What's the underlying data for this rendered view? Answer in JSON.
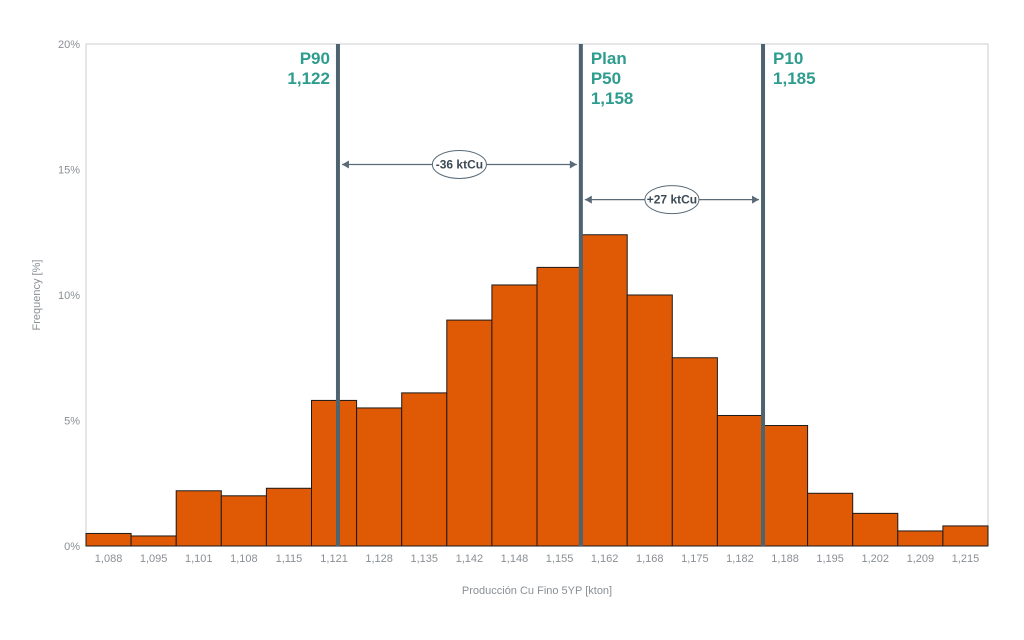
{
  "chart_data": {
    "type": "bar",
    "xlabel": "Producción Cu Fino 5YP [kton]",
    "ylabel": "Frequency [%]",
    "categories": [
      "1,088",
      "1,095",
      "1,101",
      "1,108",
      "1,115",
      "1,121",
      "1,128",
      "1,135",
      "1,142",
      "1,148",
      "1,155",
      "1,162",
      "1,168",
      "1,175",
      "1,182",
      "1,188",
      "1,195",
      "1,202",
      "1,209",
      "1,215"
    ],
    "values": [
      0.5,
      0.4,
      2.2,
      2.0,
      2.3,
      5.8,
      5.5,
      6.1,
      9.0,
      10.4,
      11.1,
      12.4,
      10.0,
      7.5,
      5.2,
      4.8,
      2.1,
      1.3,
      0.6,
      0.8
    ],
    "ylim": [
      0,
      20
    ],
    "yticks": [
      "0%",
      "5%",
      "10%",
      "15%",
      "20%"
    ],
    "ytick_values": [
      0,
      5,
      10,
      15,
      20
    ],
    "bar_color": "#e05a05",
    "markers": [
      {
        "lines": [
          "P90",
          "1,122"
        ],
        "value": 1122
      },
      {
        "lines": [
          "Plan",
          "P50",
          "1,158"
        ],
        "value": 1158
      },
      {
        "lines": [
          "P10",
          "1,185"
        ],
        "value": 1185
      }
    ],
    "ranges": [
      {
        "label": "-36 ktCu",
        "from": 1122,
        "to": 1158,
        "y": 15.2
      },
      {
        "label": "+27 ktCu",
        "from": 1158,
        "to": 1185,
        "y": 13.8
      }
    ],
    "marker_color": "#4d6370",
    "label_color": "#2e9c8e"
  }
}
